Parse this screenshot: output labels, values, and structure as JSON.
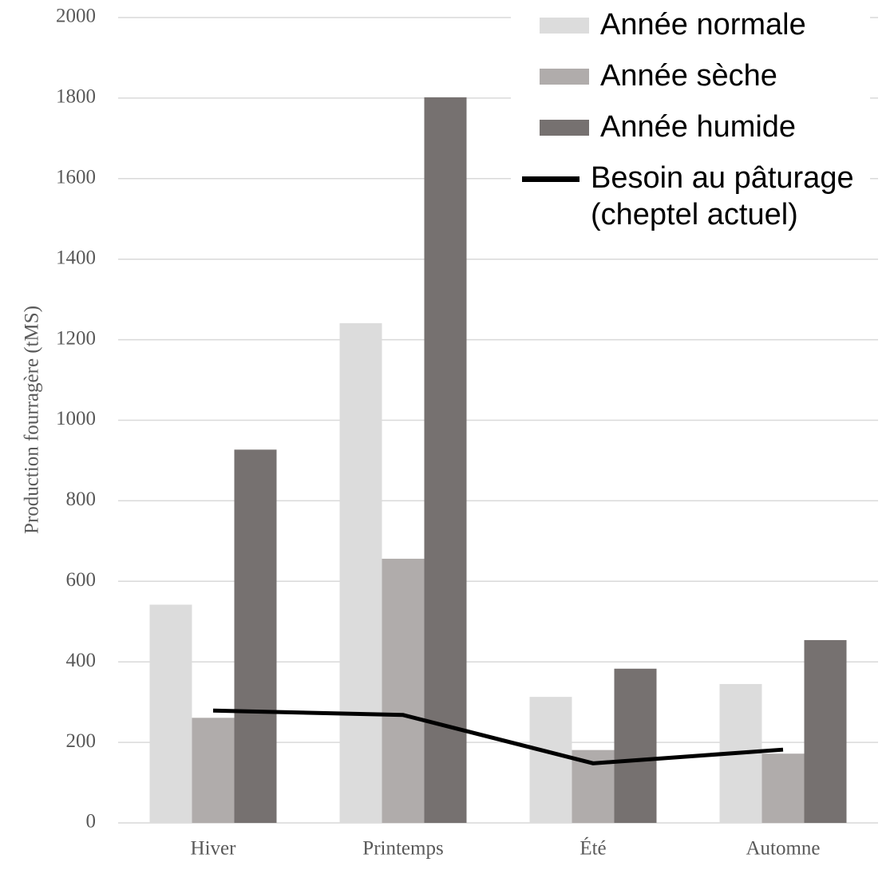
{
  "chart_data": {
    "type": "bar",
    "y_label": "Production fourragère (tMS)",
    "categories": [
      "Hiver",
      "Printemps",
      "Été",
      "Automne"
    ],
    "series": [
      {
        "name": "Année normale",
        "color": "#dcdcdc",
        "values": [
          542,
          1241,
          313,
          345
        ]
      },
      {
        "name": "Année sèche",
        "color": "#b0acab",
        "values": [
          261,
          656,
          181,
          172
        ]
      },
      {
        "name": "Année humide",
        "color": "#767170",
        "values": [
          927,
          1802,
          383,
          454
        ]
      },
      {
        "name": "Besoin au pâturage (cheptel actuel)",
        "type": "line",
        "color": "#000000",
        "values": [
          279,
          268,
          148,
          182
        ]
      }
    ],
    "ylim": [
      0,
      2000
    ],
    "yticks": [
      0,
      200,
      400,
      600,
      800,
      1000,
      1200,
      1400,
      1600,
      1800,
      2000
    ],
    "grid": true,
    "legend": "top-right"
  }
}
